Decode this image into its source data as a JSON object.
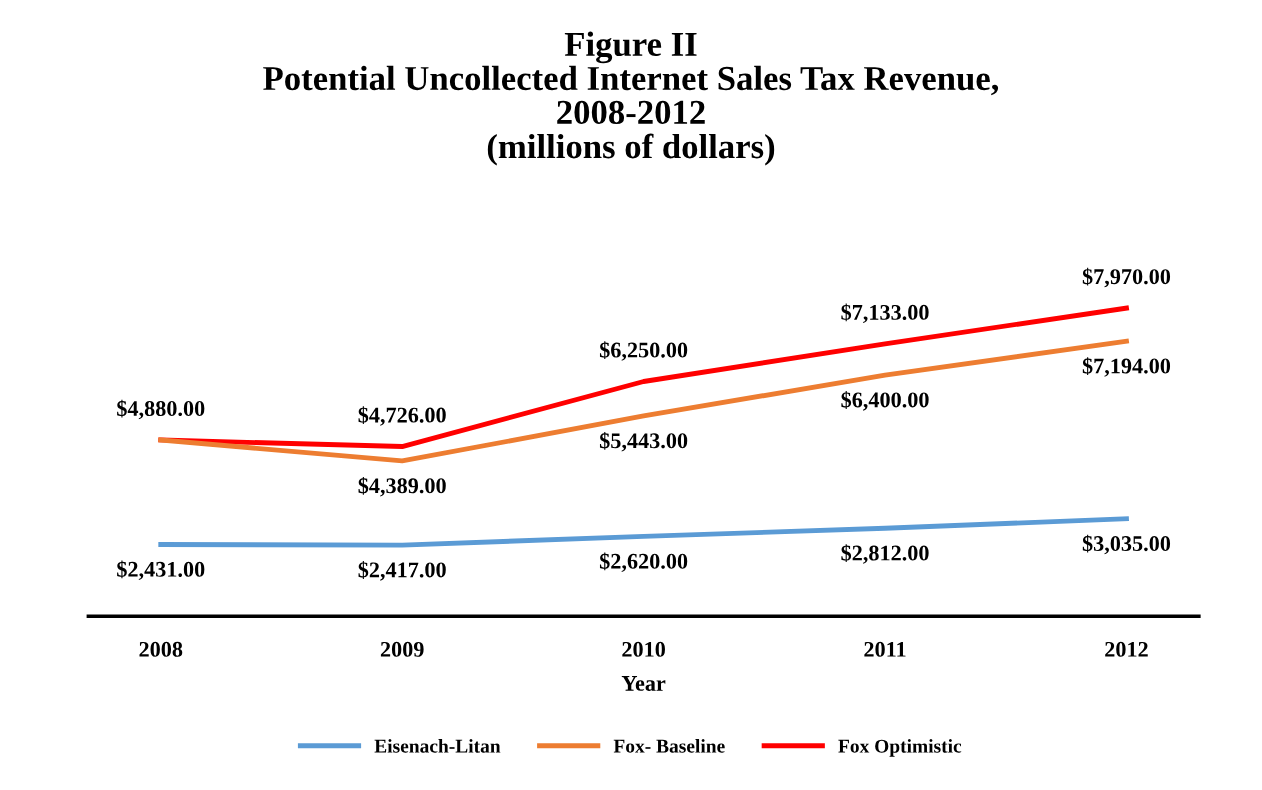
{
  "chart_data": {
    "type": "line",
    "title": "Figure II\nPotential Uncollected Internet Sales Tax Revenue,\n2008-2012\n(millions of dollars)",
    "xlabel": "Year",
    "categories": [
      "2008",
      "2009",
      "2010",
      "2011",
      "2012"
    ],
    "series": [
      {
        "name": "Eisenach-Litan",
        "color": "#5b9bd5",
        "values": [
          2431,
          2417,
          2620,
          2812,
          3035
        ],
        "value_labels": [
          "$2,431.00",
          "$2,417.00",
          "$2,620.00",
          "$2,812.00",
          "$3,035.00"
        ]
      },
      {
        "name": "Fox- Baseline",
        "color": "#ed7d31",
        "values": [
          4880,
          4389,
          5443,
          6400,
          7194
        ],
        "value_labels": [
          null,
          "$4,389.00",
          "$5,443.00",
          "$6,400.00",
          "$7,194.00"
        ]
      },
      {
        "name": "Fox Optimistic",
        "color": "#ff0000",
        "values": [
          4880,
          4726,
          6250,
          7133,
          7970
        ],
        "value_labels": [
          "$4,880.00",
          "$4,726.00",
          "$6,250.00",
          "$7,133.00",
          "$7,970.00"
        ]
      }
    ],
    "legend": "bottom",
    "grid": false,
    "marker": "none",
    "line_style": "solid"
  }
}
